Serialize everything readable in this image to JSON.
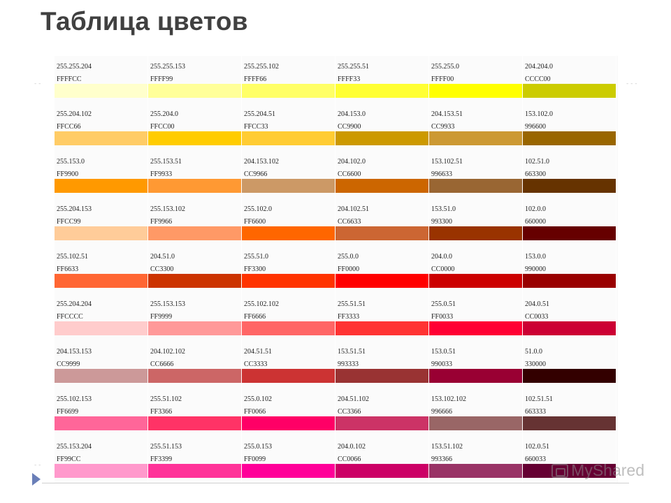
{
  "slide": {
    "title": "Таблица цветов",
    "watermark": "MyShared"
  },
  "color_table": {
    "rows": [
      [
        {
          "rgb": "255.255.204",
          "hex": "FFFFCC",
          "color": "#FFFFCC"
        },
        {
          "rgb": "255.255.153",
          "hex": "FFFF99",
          "color": "#FFFF99"
        },
        {
          "rgb": "255.255.102",
          "hex": "FFFF66",
          "color": "#FFFF66"
        },
        {
          "rgb": "255.255.51",
          "hex": "FFFF33",
          "color": "#FFFF33"
        },
        {
          "rgb": "255.255.0",
          "hex": "FFFF00",
          "color": "#FFFF00"
        },
        {
          "rgb": "204.204.0",
          "hex": "CCCC00",
          "color": "#CCCC00"
        }
      ],
      [
        {
          "rgb": "255.204.102",
          "hex": "FFCC66",
          "color": "#FFCC66"
        },
        {
          "rgb": "255.204.0",
          "hex": "FFCC00",
          "color": "#FFCC00"
        },
        {
          "rgb": "255.204.51",
          "hex": "FFCC33",
          "color": "#FFCC33"
        },
        {
          "rgb": "204.153.0",
          "hex": "CC9900",
          "color": "#CC9900"
        },
        {
          "rgb": "204.153.51",
          "hex": "CC9933",
          "color": "#CC9933"
        },
        {
          "rgb": "153.102.0",
          "hex": "996600",
          "color": "#996600"
        }
      ],
      [
        {
          "rgb": "255.153.0",
          "hex": "FF9900",
          "color": "#FF9900"
        },
        {
          "rgb": "255.153.51",
          "hex": "FF9933",
          "color": "#FF9933"
        },
        {
          "rgb": "204.153.102",
          "hex": "CC9966",
          "color": "#CC9966"
        },
        {
          "rgb": "204.102.0",
          "hex": "CC6600",
          "color": "#CC6600"
        },
        {
          "rgb": "153.102.51",
          "hex": "996633",
          "color": "#996633"
        },
        {
          "rgb": "102.51.0",
          "hex": "663300",
          "color": "#663300"
        }
      ],
      [
        {
          "rgb": "255.204.153",
          "hex": "FFCC99",
          "color": "#FFCC99"
        },
        {
          "rgb": "255.153.102",
          "hex": "FF9966",
          "color": "#FF9966"
        },
        {
          "rgb": "255.102.0",
          "hex": "FF6600",
          "color": "#FF6600"
        },
        {
          "rgb": "204.102.51",
          "hex": "CC6633",
          "color": "#CC6633"
        },
        {
          "rgb": "153.51.0",
          "hex": "993300",
          "color": "#993300"
        },
        {
          "rgb": "102.0.0",
          "hex": "660000",
          "color": "#660000"
        }
      ],
      [
        {
          "rgb": "255.102.51",
          "hex": "FF6633",
          "color": "#FF6633"
        },
        {
          "rgb": "204.51.0",
          "hex": "CC3300",
          "color": "#CC3300"
        },
        {
          "rgb": "255.51.0",
          "hex": "FF3300",
          "color": "#FF3300"
        },
        {
          "rgb": "255.0.0",
          "hex": "FF0000",
          "color": "#FF0000"
        },
        {
          "rgb": "204.0.0",
          "hex": "CC0000",
          "color": "#CC0000"
        },
        {
          "rgb": "153.0.0",
          "hex": "990000",
          "color": "#990000"
        }
      ],
      [
        {
          "rgb": "255.204.204",
          "hex": "FFCCCC",
          "color": "#FFCCCC"
        },
        {
          "rgb": "255.153.153",
          "hex": "FF9999",
          "color": "#FF9999"
        },
        {
          "rgb": "255.102.102",
          "hex": "FF6666",
          "color": "#FF6666"
        },
        {
          "rgb": "255.51.51",
          "hex": "FF3333",
          "color": "#FF3333"
        },
        {
          "rgb": "255.0.51",
          "hex": "FF0033",
          "color": "#FF0033"
        },
        {
          "rgb": "204.0.51",
          "hex": "CC0033",
          "color": "#CC0033"
        }
      ],
      [
        {
          "rgb": "204.153.153",
          "hex": "CC9999",
          "color": "#CC9999"
        },
        {
          "rgb": "204.102.102",
          "hex": "CC6666",
          "color": "#CC6666"
        },
        {
          "rgb": "204.51.51",
          "hex": "CC3333",
          "color": "#CC3333"
        },
        {
          "rgb": "153.51.51",
          "hex": "993333",
          "color": "#993333"
        },
        {
          "rgb": "153.0.51",
          "hex": "990033",
          "color": "#990033"
        },
        {
          "rgb": "51.0.0",
          "hex": "330000",
          "color": "#330000"
        }
      ],
      [
        {
          "rgb": "255.102.153",
          "hex": "FF6699",
          "color": "#FF6699"
        },
        {
          "rgb": "255.51.102",
          "hex": "FF3366",
          "color": "#FF3366"
        },
        {
          "rgb": "255.0.102",
          "hex": "FF0066",
          "color": "#FF0066"
        },
        {
          "rgb": "204.51.102",
          "hex": "CC3366",
          "color": "#CC3366"
        },
        {
          "rgb": "153.102.102",
          "hex": "996666",
          "color": "#996666"
        },
        {
          "rgb": "102.51.51",
          "hex": "663333",
          "color": "#663333"
        }
      ],
      [
        {
          "rgb": "255.153.204",
          "hex": "FF99CC",
          "color": "#FF99CC"
        },
        {
          "rgb": "255.51.153",
          "hex": "FF3399",
          "color": "#FF3399"
        },
        {
          "rgb": "255.0.153",
          "hex": "FF0099",
          "color": "#FF0099"
        },
        {
          "rgb": "204.0.102",
          "hex": "CC0066",
          "color": "#CC0066"
        },
        {
          "rgb": "153.51.102",
          "hex": "993366",
          "color": "#993366"
        },
        {
          "rgb": "102.0.51",
          "hex": "660033",
          "color": "#660033"
        }
      ]
    ]
  }
}
